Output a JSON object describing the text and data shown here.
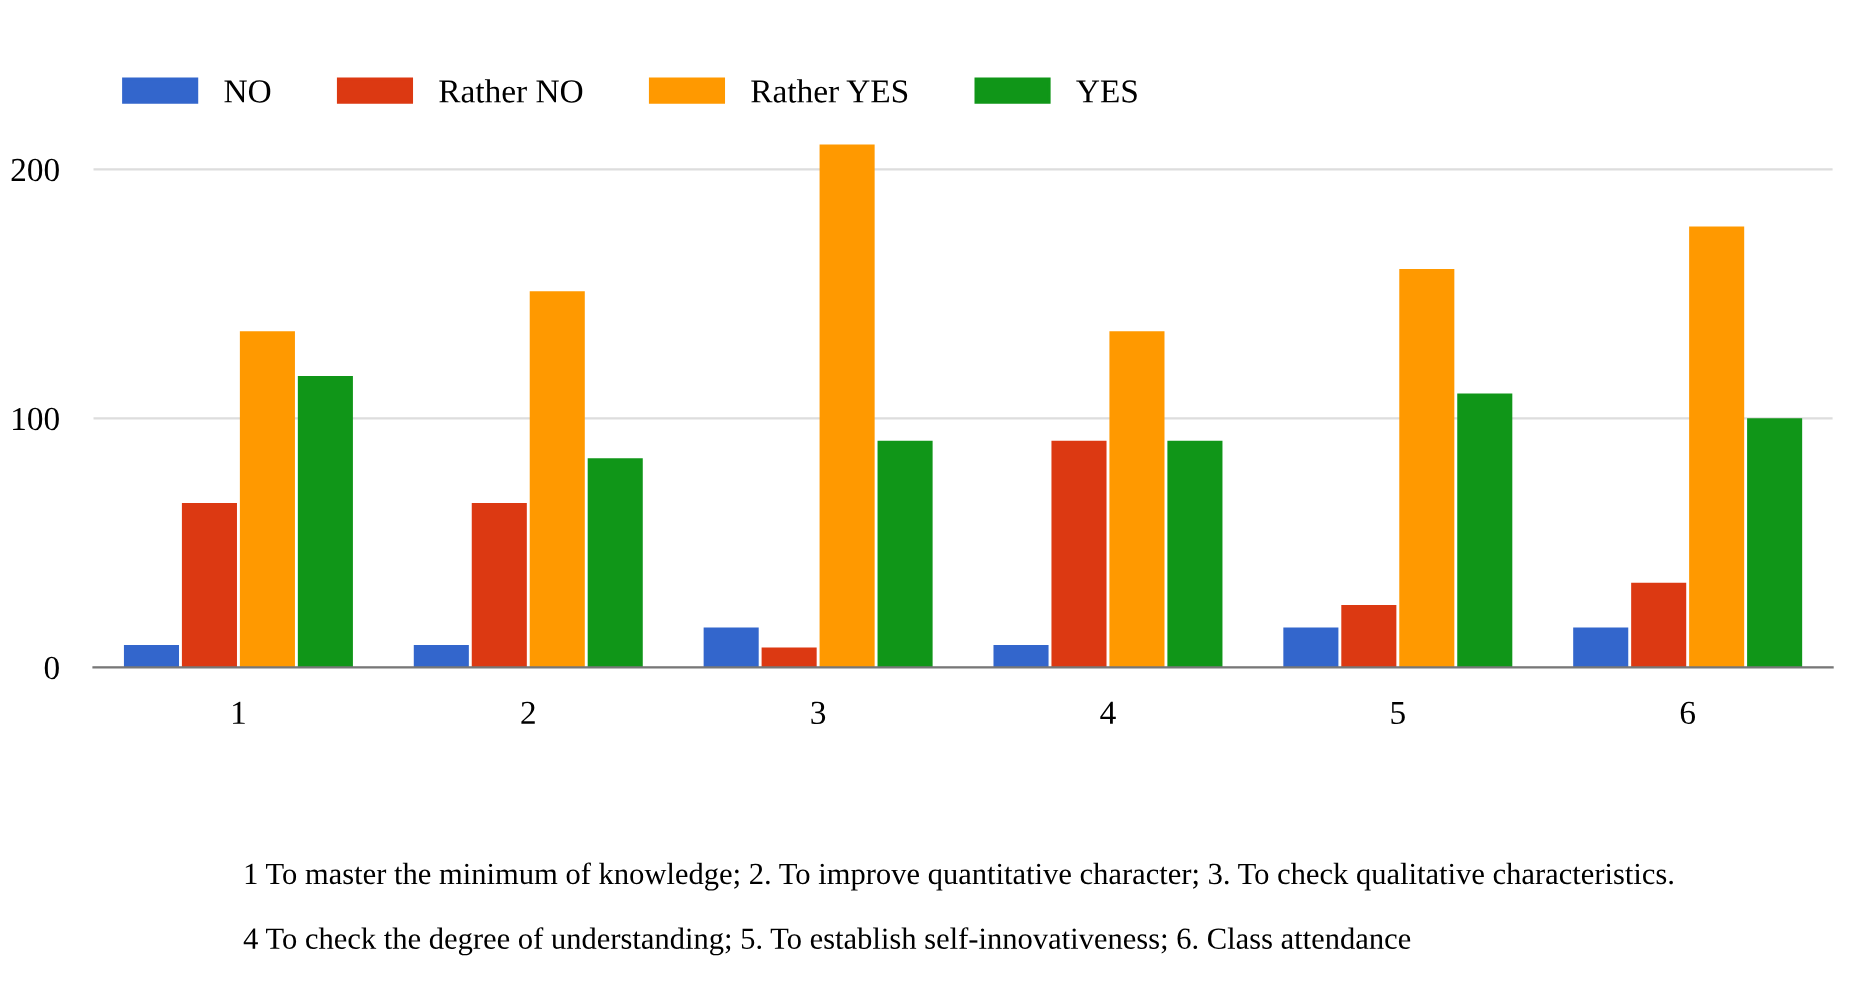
{
  "chart_data": {
    "type": "bar",
    "categories": [
      "1",
      "2",
      "3",
      "4",
      "5",
      "6"
    ],
    "series": [
      {
        "name": "NO",
        "color": "#3366cc",
        "values": [
          9,
          9,
          16,
          9,
          16,
          16
        ]
      },
      {
        "name": "Rather NO",
        "color": "#dc3912",
        "values": [
          66,
          66,
          8,
          91,
          25,
          34
        ]
      },
      {
        "name": "Rather YES",
        "color": "#ff9900",
        "values": [
          135,
          151,
          210,
          135,
          160,
          177
        ]
      },
      {
        "name": "YES",
        "color": "#109618",
        "values": [
          117,
          84,
          91,
          91,
          110,
          100
        ]
      }
    ],
    "ylim": [
      0,
      212
    ],
    "yticks": [
      0,
      100,
      200
    ],
    "grid": "y",
    "legend": "top left",
    "annotations": [
      "1 To master the minimum of knowledge; 2. To improve quantitative character; 3. To check qualitative characteristics.",
      "4 To check the degree of understanding; 5. To establish self-innovativeness; 6. Class attendance"
    ]
  }
}
